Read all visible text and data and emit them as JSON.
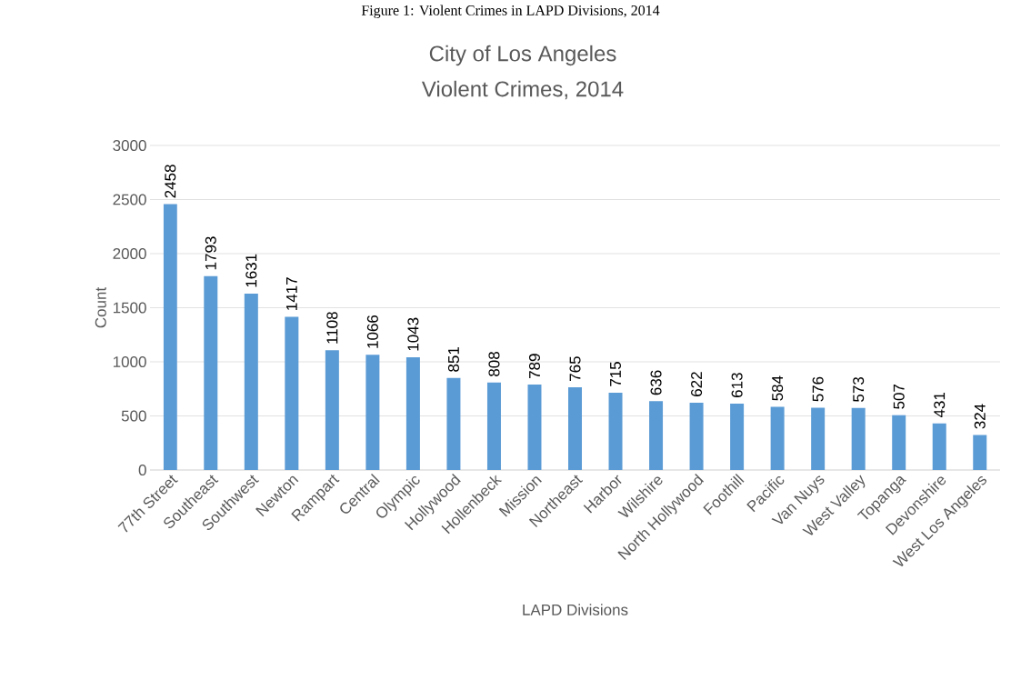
{
  "chart_data": {
    "type": "bar",
    "title": "City of Los Angeles",
    "subtitle": "Violent Crimes, 2014",
    "annotations": [
      "Figure 1: Violent Crimes in LAPD Divisions, 2014"
    ],
    "xlabel": "LAPD Divisions",
    "ylabel": "Count",
    "categories": [
      "77th Street",
      "Southeast",
      "Southwest",
      "Newton",
      "Rampart",
      "Central",
      "Olympic",
      "Hollywood",
      "Hollenbeck",
      "Mission",
      "Northeast",
      "Harbor",
      "Wilshire",
      "North Hollywood",
      "Foothill",
      "Pacific",
      "Van Nuys",
      "West Valley",
      "Topanga",
      "Devonshire",
      "West Los Angeles"
    ],
    "values": [
      2458,
      1793,
      1631,
      1417,
      1108,
      1066,
      1043,
      851,
      808,
      789,
      765,
      715,
      636,
      622,
      613,
      584,
      576,
      573,
      507,
      431,
      324
    ],
    "color": "#5b9bd5",
    "ylim": [
      0,
      3000
    ],
    "yticks": [
      0,
      500,
      1000,
      1500,
      2000,
      2500,
      3000
    ],
    "grid": "y",
    "data_labels": true
  }
}
